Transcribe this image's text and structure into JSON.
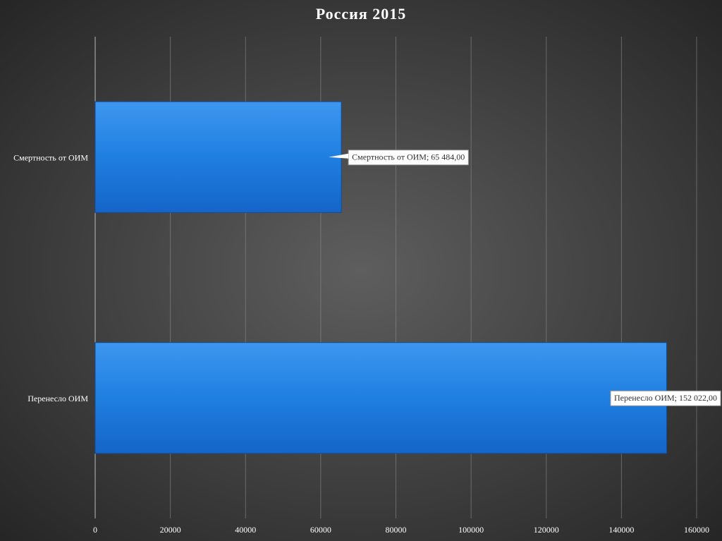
{
  "chart_data": {
    "type": "bar",
    "orientation": "horizontal",
    "title": "Россия 2015",
    "categories": [
      "Смертность от ОИМ",
      "Перенесло ОИМ"
    ],
    "values": [
      65484,
      152022
    ],
    "value_labels": [
      "Смертность от ОИМ; 65 484,00",
      "Перенесло ОИМ; 152 022,00"
    ],
    "color": "#1f7fe0",
    "xlim": [
      0,
      160000
    ],
    "xticks": [
      0,
      20000,
      40000,
      60000,
      80000,
      100000,
      120000,
      140000,
      160000
    ],
    "grid": true
  }
}
